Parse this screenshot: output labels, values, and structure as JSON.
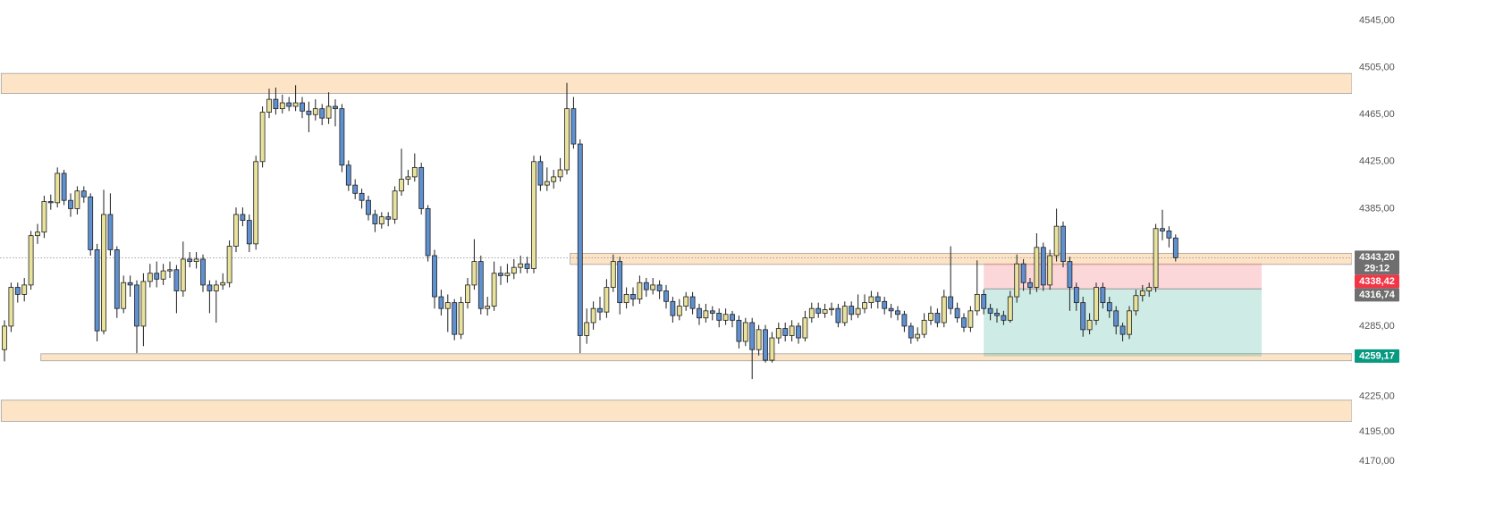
{
  "chart_data": {
    "type": "candlestick",
    "colors": {
      "up": "#e8e29c",
      "down": "#5f90d0",
      "wick": "#1e1e1e",
      "zone": "#fde4c6",
      "zone_border": "#a0a0a0",
      "stop": "#f23645",
      "target": "#089981",
      "last": "#6f6f6f"
    },
    "ylim": [
      4126,
      4562.5
    ],
    "yticks": [
      {
        "value": 4545,
        "label": "4545,00"
      },
      {
        "value": 4505,
        "label": "4505,00"
      },
      {
        "value": 4465,
        "label": "4465,00"
      },
      {
        "value": 4425,
        "label": "4425,00"
      },
      {
        "value": 4385,
        "label": "4385,00"
      },
      {
        "value": 4285,
        "label": "4285,00"
      },
      {
        "value": 4225,
        "label": "4225,00"
      },
      {
        "value": 4195,
        "label": "4195,00"
      },
      {
        "value": 4170,
        "label": "4170,00"
      }
    ],
    "ohlc": [
      [
        4265,
        4290,
        4255,
        4285
      ],
      [
        4285,
        4322,
        4280,
        4318
      ],
      [
        4318,
        4322,
        4305,
        4312
      ],
      [
        4312,
        4326,
        4306,
        4320
      ],
      [
        4320,
        4366,
        4316,
        4362
      ],
      [
        4362,
        4372,
        4355,
        4365
      ],
      [
        4365,
        4396,
        4360,
        4391
      ],
      [
        4391,
        4397,
        4384,
        4390
      ],
      [
        4390,
        4420,
        4386,
        4415
      ],
      [
        4415,
        4418,
        4388,
        4392
      ],
      [
        4392,
        4398,
        4378,
        4385
      ],
      [
        4385,
        4404,
        4380,
        4400
      ],
      [
        4400,
        4404,
        4390,
        4395
      ],
      [
        4395,
        4398,
        4345,
        4350
      ],
      [
        4350,
        4355,
        4272,
        4281
      ],
      [
        4281,
        4401,
        4278,
        4380
      ],
      [
        4380,
        4398,
        4345,
        4350
      ],
      [
        4350,
        4353,
        4292,
        4300
      ],
      [
        4300,
        4328,
        4296,
        4322
      ],
      [
        4322,
        4328,
        4310,
        4320
      ],
      [
        4320,
        4324,
        4262,
        4285
      ],
      [
        4285,
        4330,
        4268,
        4323
      ],
      [
        4323,
        4338,
        4318,
        4330
      ],
      [
        4330,
        4340,
        4318,
        4325
      ],
      [
        4325,
        4338,
        4320,
        4332
      ],
      [
        4332,
        4340,
        4326,
        4333
      ],
      [
        4333,
        4337,
        4296,
        4315
      ],
      [
        4315,
        4357,
        4310,
        4342
      ],
      [
        4342,
        4348,
        4335,
        4340
      ],
      [
        4340,
        4348,
        4334,
        4342
      ],
      [
        4342,
        4346,
        4314,
        4320
      ],
      [
        4320,
        4324,
        4296,
        4315
      ],
      [
        4315,
        4324,
        4288,
        4320
      ],
      [
        4320,
        4330,
        4316,
        4322
      ],
      [
        4322,
        4358,
        4318,
        4353
      ],
      [
        4353,
        4386,
        4348,
        4380
      ],
      [
        4380,
        4386,
        4370,
        4375
      ],
      [
        4375,
        4380,
        4348,
        4355
      ],
      [
        4355,
        4430,
        4350,
        4425
      ],
      [
        4425,
        4472,
        4420,
        4467
      ],
      [
        4467,
        4487,
        4462,
        4478
      ],
      [
        4478,
        4488,
        4465,
        4470
      ],
      [
        4470,
        4482,
        4466,
        4475
      ],
      [
        4475,
        4480,
        4468,
        4472
      ],
      [
        4472,
        4490,
        4468,
        4475
      ],
      [
        4475,
        4480,
        4462,
        4468
      ],
      [
        4468,
        4476,
        4450,
        4465
      ],
      [
        4465,
        4478,
        4460,
        4470
      ],
      [
        4470,
        4474,
        4456,
        4462
      ],
      [
        4462,
        4484,
        4457,
        4472
      ],
      [
        4472,
        4478,
        4455,
        4470
      ],
      [
        4470,
        4474,
        4416,
        4422
      ],
      [
        4422,
        4426,
        4400,
        4405
      ],
      [
        4405,
        4410,
        4393,
        4398
      ],
      [
        4398,
        4402,
        4385,
        4392
      ],
      [
        4392,
        4396,
        4375,
        4380
      ],
      [
        4380,
        4384,
        4365,
        4372
      ],
      [
        4372,
        4382,
        4368,
        4378
      ],
      [
        4378,
        4382,
        4370,
        4376
      ],
      [
        4376,
        4404,
        4372,
        4400
      ],
      [
        4400,
        4436,
        4396,
        4410
      ],
      [
        4410,
        4418,
        4405,
        4412
      ],
      [
        4412,
        4432,
        4408,
        4420
      ],
      [
        4420,
        4424,
        4380,
        4385
      ],
      [
        4385,
        4388,
        4340,
        4345
      ],
      [
        4345,
        4350,
        4300,
        4310
      ],
      [
        4310,
        4316,
        4294,
        4300
      ],
      [
        4300,
        4312,
        4280,
        4305
      ],
      [
        4305,
        4308,
        4273,
        4278
      ],
      [
        4278,
        4310,
        4274,
        4305
      ],
      [
        4305,
        4326,
        4300,
        4320
      ],
      [
        4320,
        4359,
        4316,
        4340
      ],
      [
        4340,
        4345,
        4295,
        4300
      ],
      [
        4300,
        4310,
        4294,
        4302
      ],
      [
        4302,
        4340,
        4298,
        4330
      ],
      [
        4330,
        4336,
        4320,
        4328
      ],
      [
        4328,
        4338,
        4322,
        4330
      ],
      [
        4330,
        4342,
        4325,
        4335
      ],
      [
        4335,
        4345,
        4330,
        4338
      ],
      [
        4338,
        4344,
        4330,
        4334
      ],
      [
        4334,
        4430,
        4330,
        4425
      ],
      [
        4425,
        4430,
        4400,
        4405
      ],
      [
        4405,
        4420,
        4400,
        4408
      ],
      [
        4408,
        4418,
        4402,
        4412
      ],
      [
        4412,
        4428,
        4408,
        4418
      ],
      [
        4418,
        4492,
        4414,
        4470
      ],
      [
        4470,
        4480,
        4436,
        4440
      ],
      [
        4440,
        4444,
        4262,
        4277
      ],
      [
        4277,
        4300,
        4270,
        4288
      ],
      [
        4288,
        4306,
        4282,
        4300
      ],
      [
        4300,
        4310,
        4290,
        4297
      ],
      [
        4297,
        4325,
        4292,
        4318
      ],
      [
        4318,
        4346,
        4314,
        4340
      ],
      [
        4340,
        4344,
        4295,
        4305
      ],
      [
        4305,
        4318,
        4300,
        4312
      ],
      [
        4312,
        4318,
        4302,
        4308
      ],
      [
        4308,
        4328,
        4304,
        4322
      ],
      [
        4322,
        4326,
        4310,
        4316
      ],
      [
        4316,
        4326,
        4312,
        4320
      ],
      [
        4320,
        4324,
        4308,
        4315
      ],
      [
        4315,
        4320,
        4300,
        4306
      ],
      [
        4306,
        4310,
        4288,
        4294
      ],
      [
        4294,
        4308,
        4290,
        4302
      ],
      [
        4302,
        4314,
        4298,
        4310
      ],
      [
        4310,
        4314,
        4295,
        4300
      ],
      [
        4300,
        4304,
        4286,
        4292
      ],
      [
        4292,
        4304,
        4288,
        4298
      ],
      [
        4298,
        4302,
        4290,
        4296
      ],
      [
        4296,
        4300,
        4284,
        4290
      ],
      [
        4290,
        4300,
        4286,
        4295
      ],
      [
        4295,
        4298,
        4284,
        4290
      ],
      [
        4290,
        4294,
        4266,
        4272
      ],
      [
        4272,
        4292,
        4268,
        4288
      ],
      [
        4288,
        4292,
        4240,
        4265
      ],
      [
        4265,
        4286,
        4260,
        4282
      ],
      [
        4282,
        4286,
        4254,
        4256
      ],
      [
        4256,
        4280,
        4254,
        4275
      ],
      [
        4275,
        4288,
        4270,
        4283
      ],
      [
        4283,
        4288,
        4272,
        4277
      ],
      [
        4277,
        4290,
        4272,
        4285
      ],
      [
        4285,
        4288,
        4270,
        4275
      ],
      [
        4275,
        4298,
        4272,
        4292
      ],
      [
        4292,
        4305,
        4288,
        4300
      ],
      [
        4300,
        4305,
        4292,
        4296
      ],
      [
        4296,
        4304,
        4292,
        4299
      ],
      [
        4299,
        4305,
        4294,
        4300
      ],
      [
        4300,
        4304,
        4284,
        4288
      ],
      [
        4288,
        4306,
        4285,
        4302
      ],
      [
        4302,
        4306,
        4290,
        4295
      ],
      [
        4295,
        4312,
        4292,
        4300
      ],
      [
        4300,
        4312,
        4296,
        4305
      ],
      [
        4305,
        4315,
        4300,
        4310
      ],
      [
        4310,
        4314,
        4300,
        4306
      ],
      [
        4306,
        4310,
        4295,
        4300
      ],
      [
        4300,
        4304,
        4292,
        4298
      ],
      [
        4298,
        4302,
        4290,
        4295
      ],
      [
        4295,
        4298,
        4280,
        4285
      ],
      [
        4285,
        4288,
        4270,
        4275
      ],
      [
        4275,
        4284,
        4272,
        4278
      ],
      [
        4278,
        4296,
        4275,
        4290
      ],
      [
        4290,
        4302,
        4286,
        4296
      ],
      [
        4296,
        4300,
        4284,
        4288
      ],
      [
        4288,
        4316,
        4284,
        4310
      ],
      [
        4310,
        4353,
        4295,
        4300
      ],
      [
        4300,
        4305,
        4288,
        4292
      ],
      [
        4292,
        4296,
        4280,
        4284
      ],
      [
        4284,
        4302,
        4280,
        4298
      ],
      [
        4298,
        4341,
        4294,
        4312
      ],
      [
        4312,
        4316,
        4295,
        4300
      ],
      [
        4300,
        4304,
        4290,
        4296
      ],
      [
        4296,
        4300,
        4288,
        4294
      ],
      [
        4294,
        4298,
        4286,
        4290
      ],
      [
        4290,
        4315,
        4288,
        4310
      ],
      [
        4310,
        4346,
        4305,
        4338
      ],
      [
        4338,
        4342,
        4315,
        4322
      ],
      [
        4322,
        4326,
        4312,
        4318
      ],
      [
        4318,
        4364,
        4314,
        4352
      ],
      [
        4352,
        4356,
        4315,
        4320
      ],
      [
        4320,
        4350,
        4316,
        4345
      ],
      [
        4345,
        4385,
        4340,
        4370
      ],
      [
        4370,
        4374,
        4335,
        4340
      ],
      [
        4340,
        4344,
        4298,
        4318
      ],
      [
        4318,
        4322,
        4298,
        4305
      ],
      [
        4305,
        4310,
        4276,
        4282
      ],
      [
        4282,
        4296,
        4278,
        4290
      ],
      [
        4290,
        4322,
        4286,
        4318
      ],
      [
        4318,
        4322,
        4300,
        4305
      ],
      [
        4305,
        4310,
        4292,
        4298
      ],
      [
        4298,
        4302,
        4278,
        4285
      ],
      [
        4285,
        4288,
        4272,
        4278
      ],
      [
        4278,
        4302,
        4274,
        4298
      ],
      [
        4298,
        4316,
        4294,
        4311
      ],
      [
        4311,
        4320,
        4306,
        4315
      ],
      [
        4315,
        4322,
        4310,
        4318
      ],
      [
        4318,
        4372,
        4314,
        4368
      ],
      [
        4368,
        4384,
        4358,
        4366
      ],
      [
        4366,
        4370,
        4352,
        4360
      ],
      [
        4360,
        4363,
        4340,
        4343.2
      ]
    ],
    "zones": [
      {
        "top": 4500,
        "bottom": 4483,
        "start_index": 0
      },
      {
        "top": 4347,
        "bottom": 4337.5,
        "start_index": 86
      },
      {
        "top": 4261.5,
        "bottom": 4255.5,
        "start_index": 6
      },
      {
        "top": 4222,
        "bottom": 4204,
        "start_index": 0
      }
    ],
    "position": {
      "start_index": 148,
      "end_index": 190,
      "stop": {
        "value": 4338.42,
        "label": "4338,42"
      },
      "entry": {
        "value": 4316.74,
        "label": "4316,74"
      },
      "target": {
        "value": 4259.17,
        "label": "4259,17"
      }
    },
    "last_price": {
      "value": 4343.2,
      "label": "4343,20",
      "countdown": "29:12"
    }
  }
}
